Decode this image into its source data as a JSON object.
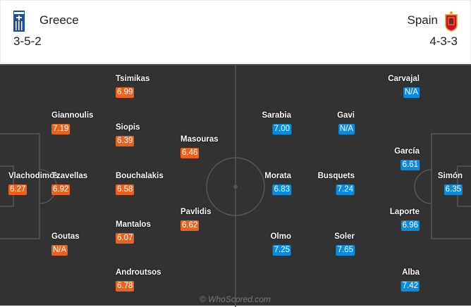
{
  "home": {
    "name": "Greece",
    "formation": "3-5-2",
    "color": "#e8611d",
    "crest_icon": "greece-flag-icon",
    "players": [
      {
        "name": "Tsimikas",
        "rating": "6.99"
      },
      {
        "name": "Giannoulis",
        "rating": "7.19"
      },
      {
        "name": "Siopis",
        "rating": "6.39"
      },
      {
        "name": "Masouras",
        "rating": "6.46"
      },
      {
        "name": "Vlachodimos",
        "rating": "6.27"
      },
      {
        "name": "Tzavellas",
        "rating": "6.92"
      },
      {
        "name": "Bouchalakis",
        "rating": "6.58"
      },
      {
        "name": "Pavlidis",
        "rating": "6.62"
      },
      {
        "name": "Mantalos",
        "rating": "6.07"
      },
      {
        "name": "Goutas",
        "rating": "N/A"
      },
      {
        "name": "Androutsos",
        "rating": "6.78"
      }
    ]
  },
  "away": {
    "name": "Spain",
    "formation": "4-3-3",
    "color": "#0a8bdc",
    "crest_icon": "spain-crest-icon",
    "players": [
      {
        "name": "Carvajal",
        "rating": "N/A"
      },
      {
        "name": "Sarabia",
        "rating": "7.00"
      },
      {
        "name": "Gavi",
        "rating": "N/A"
      },
      {
        "name": "García",
        "rating": "6.61"
      },
      {
        "name": "Morata",
        "rating": "6.83"
      },
      {
        "name": "Busquets",
        "rating": "7.24"
      },
      {
        "name": "Simón",
        "rating": "6.35"
      },
      {
        "name": "Laporte",
        "rating": "6.96"
      },
      {
        "name": "Olmo",
        "rating": "7.25"
      },
      {
        "name": "Soler",
        "rating": "7.65"
      },
      {
        "name": "Alba",
        "rating": "7.42"
      }
    ]
  },
  "watermark": "© WhoScored.com"
}
